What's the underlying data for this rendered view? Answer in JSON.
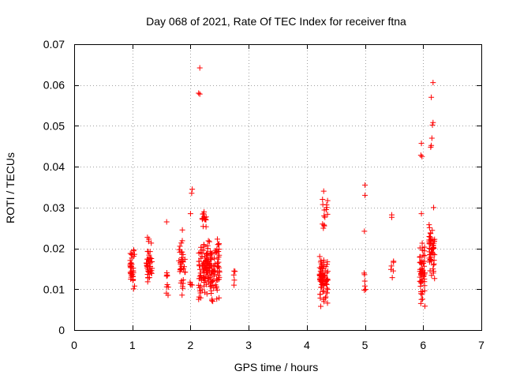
{
  "chart_data": {
    "type": "scatter",
    "title": "Day 068 of 2021, Rate Of TEC Index for receiver ftna",
    "xlabel": "GPS time / hours",
    "ylabel": "ROTI / TECUs",
    "xlim": [
      0,
      7
    ],
    "ylim": [
      0,
      0.07
    ],
    "x_ticks": [
      0,
      1,
      2,
      3,
      4,
      5,
      6,
      7
    ],
    "x_tick_labels": [
      "0",
      "1",
      "2",
      "3",
      "4",
      "5",
      "6",
      "7"
    ],
    "y_ticks": [
      0,
      0.01,
      0.02,
      0.03,
      0.04,
      0.05,
      0.06,
      0.07
    ],
    "y_tick_labels": [
      "0",
      "0.01",
      "0.02",
      "0.03",
      "0.04",
      "0.05",
      "0.06",
      "0.07"
    ],
    "grid": true,
    "marker": "+",
    "marker_color": "#ff0000",
    "clusters": [
      {
        "x": [
          0.96,
          1.04
        ],
        "y": [
          0.009,
          0.0215
        ],
        "n": 40,
        "seed": 11
      },
      {
        "x": [
          1.24,
          1.34
        ],
        "y": [
          0.009,
          0.023
        ],
        "n": 40,
        "seed": 12
      },
      {
        "x": [
          1.58,
          1.62
        ],
        "y": [
          0.007,
          0.0175
        ],
        "n": 9,
        "seed": 13
      },
      {
        "x": [
          1.8,
          1.92
        ],
        "y": [
          0.008,
          0.025
        ],
        "n": 35,
        "seed": 14
      },
      {
        "x": [
          1.98,
          2.04
        ],
        "y": [
          0.0105,
          0.0125
        ],
        "n": 4,
        "seed": 15
      },
      {
        "x": [
          2.14,
          2.5
        ],
        "y": [
          0.006,
          0.024
        ],
        "n": 170,
        "seed": 16
      },
      {
        "x": [
          2.2,
          2.3
        ],
        "y": [
          0.024,
          0.031
        ],
        "n": 14,
        "seed": 17
      },
      {
        "x": [
          2.74,
          2.78
        ],
        "y": [
          0.0105,
          0.018
        ],
        "n": 5,
        "seed": 18
      },
      {
        "x": [
          4.22,
          4.36
        ],
        "y": [
          0.0055,
          0.019
        ],
        "n": 85,
        "seed": 19
      },
      {
        "x": [
          4.26,
          4.36
        ],
        "y": [
          0.021,
          0.034
        ],
        "n": 12,
        "seed": 20
      },
      {
        "x": [
          4.98,
          5.02
        ],
        "y": [
          0.0085,
          0.015
        ],
        "n": 6,
        "seed": 21
      },
      {
        "x": [
          5.44,
          5.5
        ],
        "y": [
          0.0125,
          0.018
        ],
        "n": 6,
        "seed": 22
      },
      {
        "x": [
          5.94,
          6.03
        ],
        "y": [
          0.005,
          0.024
        ],
        "n": 55,
        "seed": 23
      },
      {
        "x": [
          6.1,
          6.2
        ],
        "y": [
          0.012,
          0.027
        ],
        "n": 55,
        "seed": 24
      }
    ],
    "points": [
      [
        1.59,
        0.0265
      ],
      [
        1.86,
        0.0245
      ],
      [
        2.0,
        0.0285
      ],
      [
        2.02,
        0.0335
      ],
      [
        2.03,
        0.0345
      ],
      [
        2.16,
        0.0642
      ],
      [
        2.14,
        0.058
      ],
      [
        2.16,
        0.0578
      ],
      [
        4.3,
        0.0255
      ],
      [
        4.29,
        0.034
      ],
      [
        4.27,
        0.032
      ],
      [
        5.0,
        0.0355
      ],
      [
        5.0,
        0.033
      ],
      [
        4.99,
        0.0242
      ],
      [
        5.46,
        0.0282
      ],
      [
        5.46,
        0.0276
      ],
      [
        5.97,
        0.0285
      ],
      [
        5.96,
        0.0428
      ],
      [
        5.97,
        0.0457
      ],
      [
        5.98,
        0.0425
      ],
      [
        6.13,
        0.0448
      ],
      [
        6.14,
        0.0452
      ],
      [
        6.15,
        0.047
      ],
      [
        6.16,
        0.0502
      ],
      [
        6.17,
        0.0508
      ],
      [
        6.14,
        0.057
      ],
      [
        6.17,
        0.0606
      ],
      [
        6.18,
        0.03
      ],
      [
        5.97,
        0.0075
      ],
      [
        5.96,
        0.0065
      ],
      [
        4.24,
        0.0058
      ]
    ]
  }
}
